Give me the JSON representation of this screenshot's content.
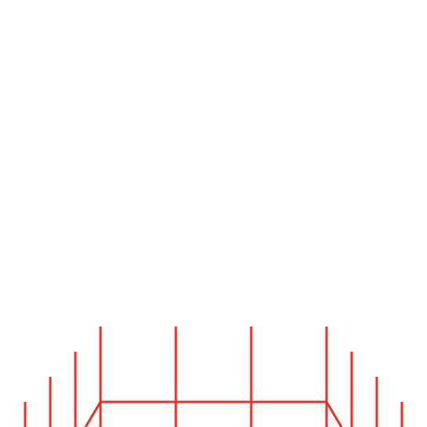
{
  "graphic": {
    "description_visible_text": "",
    "stroke_color": "#e8302a",
    "background_color": "#ffffff",
    "elements": {
      "vertical_lines": 12,
      "horizontal_bar": 1,
      "diagonal_legs": 2
    }
  }
}
